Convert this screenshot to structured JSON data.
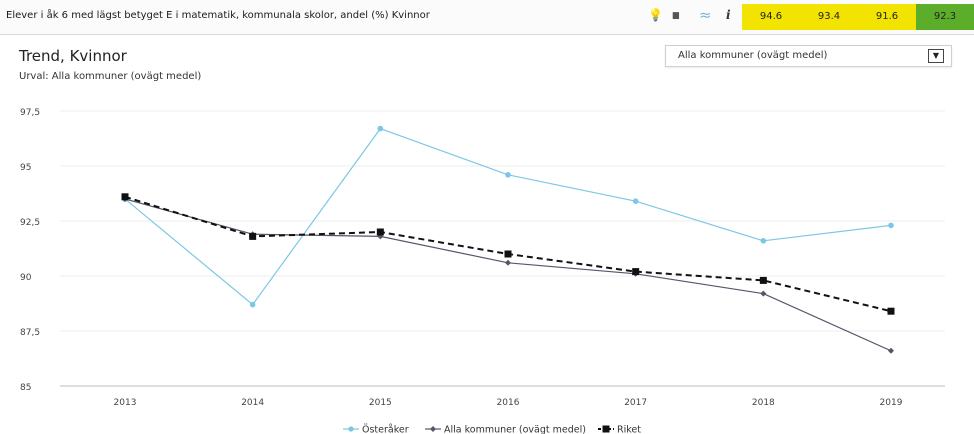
{
  "header": {
    "title": "Elever i åk 6 med lägst betyget E i matematik, kommunala skolor, andel (%) Kvinnor",
    "tools": [
      {
        "name": "lightbulb-icon",
        "glyph": "💡"
      },
      {
        "name": "bar-chart-icon",
        "glyph": "▮▮"
      },
      {
        "name": "trend-chart-icon",
        "glyph": "≈"
      },
      {
        "name": "info-icon",
        "glyph": "i"
      }
    ],
    "values": [
      {
        "label": "94.6",
        "color": "#f2e400"
      },
      {
        "label": "93.4",
        "color": "#f2e400"
      },
      {
        "label": "91.6",
        "color": "#f2e400"
      },
      {
        "label": "92.3",
        "color": "#5cae2a"
      }
    ]
  },
  "chart_title": "Trend, Kvinnor",
  "chart_subtitle": "Urval: Alla kommuner (ovägt medel)",
  "selector": {
    "label": "Alla kommuner (ovägt medel)",
    "glyph": "▼"
  },
  "chart_data": {
    "type": "line",
    "title": "Trend, Kvinnor",
    "x": [
      "2013",
      "2014",
      "2015",
      "2016",
      "2017",
      "2018",
      "2019"
    ],
    "yticks": [
      "97,5",
      "95",
      "92,5",
      "90",
      "87,5",
      "85"
    ],
    "yticks_values": [
      97.5,
      95,
      92.5,
      90,
      87.5,
      85
    ],
    "ylim": [
      85,
      97.5
    ],
    "grid": true,
    "legend_position": "bottom-center",
    "series": [
      {
        "name": "Österåker",
        "color": "#7cc7e6",
        "style": "solid",
        "marker": "circle",
        "values": [
          93.5,
          88.7,
          96.7,
          94.6,
          93.4,
          91.6,
          92.3
        ]
      },
      {
        "name": "Alla kommuner (ovägt medel)",
        "color": "#55566a",
        "style": "solid",
        "marker": "diamond",
        "values": [
          93.5,
          91.9,
          91.8,
          90.6,
          90.1,
          89.2,
          86.6
        ]
      },
      {
        "name": "Riket",
        "color": "#111111",
        "style": "dashed",
        "marker": "square",
        "values": [
          93.6,
          91.8,
          92.0,
          91.0,
          90.2,
          89.8,
          88.4
        ]
      }
    ]
  }
}
